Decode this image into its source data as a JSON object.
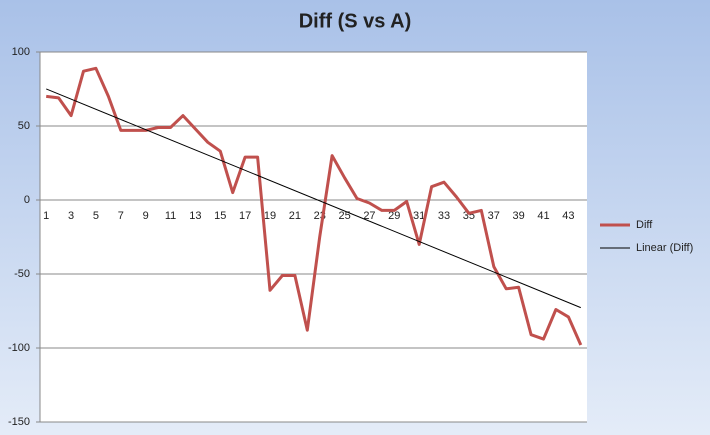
{
  "chart_data": {
    "type": "line",
    "title": "Diff (S vs A)",
    "categories": [
      "1",
      null,
      "3",
      null,
      "5",
      null,
      "7",
      null,
      "9",
      null,
      "11",
      null,
      "13",
      null,
      "15",
      null,
      "17",
      null,
      "19",
      null,
      "21",
      null,
      "23",
      null,
      "25",
      null,
      "27",
      null,
      "29",
      null,
      "31",
      null,
      "33",
      null,
      "35",
      null,
      "37",
      null,
      "39",
      null,
      "41",
      null,
      "43",
      null
    ],
    "series": [
      {
        "name": "Diff",
        "color": "#c0504d",
        "values": [
          70,
          69,
          57,
          87,
          89,
          70,
          47,
          47,
          47,
          49,
          49,
          57,
          48,
          39,
          33,
          5,
          29,
          29,
          -61,
          -51,
          -51,
          -88,
          -25,
          30,
          15,
          1,
          -2,
          -7,
          -7,
          -1,
          -30,
          9,
          12,
          2,
          -9,
          -7,
          -45,
          -60,
          -59,
          -91,
          -94,
          -74,
          -79,
          -98
        ]
      }
    ],
    "trendline": {
      "name": "Linear (Diff)",
      "color": "#000000"
    },
    "ylim": [
      -150,
      100
    ],
    "yticks": [
      -150,
      -100,
      -50,
      0,
      50,
      100
    ],
    "grid": true,
    "legend": "right"
  }
}
